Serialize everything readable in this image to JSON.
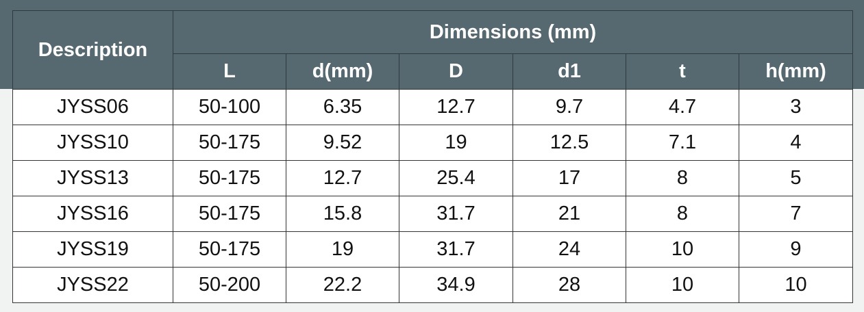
{
  "header": {
    "description": "Description",
    "group": "Dimensions (mm)",
    "columns": [
      "L",
      "d(mm)",
      "D",
      "d1",
      "t",
      "h(mm)"
    ]
  },
  "table": {
    "rows": [
      [
        "JYSS06",
        "50-100",
        "6.35",
        "12.7",
        "9.7",
        "4.7",
        "3"
      ],
      [
        "JYSS10",
        "50-175",
        "9.52",
        "19",
        "12.5",
        "7.1",
        "4"
      ],
      [
        "JYSS13",
        "50-175",
        "12.7",
        "25.4",
        "17",
        "8",
        "5"
      ],
      [
        "JYSS16",
        "50-175",
        "15.8",
        "31.7",
        "21",
        "8",
        "7"
      ],
      [
        "JYSS19",
        "50-175",
        "19",
        "31.7",
        "24",
        "10",
        "9"
      ],
      [
        "JYSS22",
        "50-200",
        "22.2",
        "34.9",
        "28",
        "10",
        "10"
      ]
    ]
  }
}
